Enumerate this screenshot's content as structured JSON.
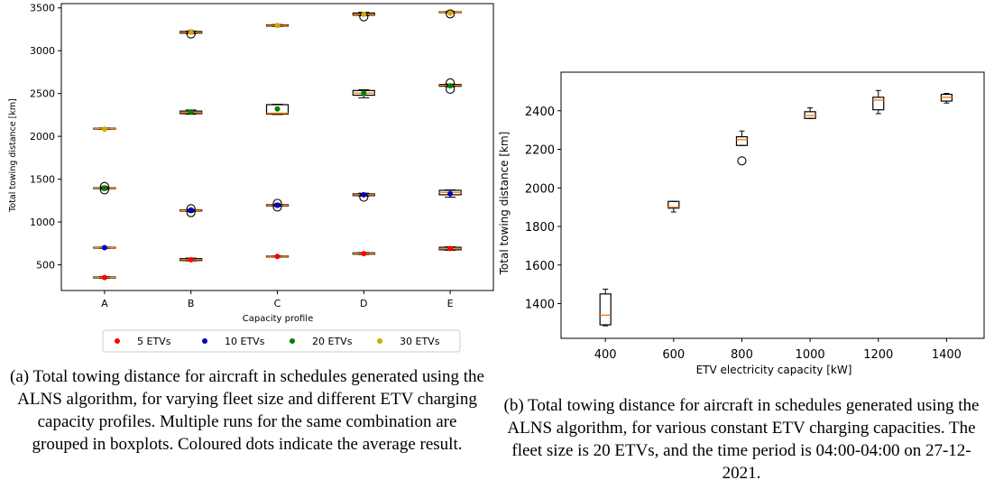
{
  "chart_data": [
    {
      "type": "box",
      "xlabel": "Capacity profile",
      "ylabel": "Total towing distance [km]",
      "categories": [
        "A",
        "B",
        "C",
        "D",
        "E"
      ],
      "ylim": [
        200,
        3550
      ],
      "yticks": [
        500,
        1000,
        1500,
        2000,
        2500,
        3000,
        3500
      ],
      "grid": false,
      "legend_position": "bottom",
      "series": [
        {
          "name": "5 ETVs",
          "color": "#ff0000",
          "means": [
            352,
            560,
            598,
            630,
            690
          ],
          "boxes": [
            {
              "q1": 346,
              "median": 352,
              "q3": 358,
              "whislo": 342,
              "whishi": 362,
              "fliers": []
            },
            {
              "q1": 550,
              "median": 560,
              "q3": 572,
              "whislo": 546,
              "whishi": 578,
              "fliers": []
            },
            {
              "q1": 592,
              "median": 598,
              "q3": 603,
              "whislo": 590,
              "whishi": 606,
              "fliers": []
            },
            {
              "q1": 624,
              "median": 632,
              "q3": 640,
              "whislo": 620,
              "whishi": 644,
              "fliers": []
            },
            {
              "q1": 675,
              "median": 690,
              "q3": 705,
              "whislo": 670,
              "whishi": 710,
              "fliers": []
            }
          ]
        },
        {
          "name": "10 ETVs",
          "color": "#0000cc",
          "means": [
            700,
            1140,
            1195,
            1318,
            1330
          ],
          "boxes": [
            {
              "q1": 695,
              "median": 700,
              "q3": 705,
              "whislo": 692,
              "whishi": 708,
              "fliers": []
            },
            {
              "q1": 1128,
              "median": 1135,
              "q3": 1142,
              "whislo": 1124,
              "whishi": 1146,
              "fliers": [
                1110,
                1155
              ]
            },
            {
              "q1": 1188,
              "median": 1195,
              "q3": 1202,
              "whislo": 1184,
              "whishi": 1206,
              "fliers": [
                1175,
                1218
              ]
            },
            {
              "q1": 1308,
              "median": 1318,
              "q3": 1328,
              "whislo": 1302,
              "whishi": 1336,
              "fliers": [
                1290
              ]
            },
            {
              "q1": 1318,
              "median": 1345,
              "q3": 1370,
              "whislo": 1290,
              "whishi": 1375,
              "fliers": []
            }
          ]
        },
        {
          "name": "20 ETVs",
          "color": "#008000",
          "means": [
            1395,
            2285,
            2320,
            2505,
            2590
          ],
          "boxes": [
            {
              "q1": 1390,
              "median": 1395,
              "q3": 1400,
              "whislo": 1386,
              "whishi": 1404,
              "fliers": [
                1375,
                1415
              ]
            },
            {
              "q1": 2265,
              "median": 2280,
              "q3": 2295,
              "whislo": 2258,
              "whishi": 2308,
              "fliers": []
            },
            {
              "q1": 2260,
              "median": 2270,
              "q3": 2370,
              "whislo": 2255,
              "whishi": 2375,
              "fliers": []
            },
            {
              "q1": 2480,
              "median": 2505,
              "q3": 2535,
              "whislo": 2450,
              "whishi": 2545,
              "fliers": []
            },
            {
              "q1": 2585,
              "median": 2595,
              "q3": 2605,
              "whislo": 2580,
              "whishi": 2610,
              "fliers": [
                2550,
                2625
              ]
            }
          ]
        },
        {
          "name": "30 ETVs",
          "color": "#d4a800",
          "means": [
            2085,
            3215,
            3295,
            3425,
            3440
          ],
          "boxes": [
            {
              "q1": 2085,
              "median": 2090,
              "q3": 2095,
              "whislo": 2082,
              "whishi": 2098,
              "fliers": []
            },
            {
              "q1": 3205,
              "median": 3215,
              "q3": 3225,
              "whislo": 3200,
              "whishi": 3230,
              "fliers": [
                3195
              ]
            },
            {
              "q1": 3288,
              "median": 3295,
              "q3": 3302,
              "whislo": 3284,
              "whishi": 3306,
              "fliers": []
            },
            {
              "q1": 3415,
              "median": 3425,
              "q3": 3440,
              "whislo": 3410,
              "whishi": 3448,
              "fliers": [
                3395
              ]
            },
            {
              "q1": 3445,
              "median": 3450,
              "q3": 3455,
              "whislo": 3442,
              "whishi": 3458,
              "fliers": [
                3430
              ]
            }
          ]
        }
      ]
    },
    {
      "type": "box",
      "xlabel": "ETV electricity capacity [kW]",
      "ylabel": "Total towing distance [km]",
      "x": [
        400,
        600,
        800,
        1000,
        1200,
        1400
      ],
      "xlim": [
        270,
        1510
      ],
      "ylim": [
        1220,
        2600
      ],
      "yticks": [
        1400,
        1600,
        1800,
        2000,
        2200,
        2400
      ],
      "grid": false,
      "boxes": [
        {
          "q1": 1290,
          "median": 1340,
          "q3": 1450,
          "whislo": 1285,
          "whishi": 1475,
          "fliers": []
        },
        {
          "q1": 1895,
          "median": 1900,
          "q3": 1930,
          "whislo": 1875,
          "whishi": 1930,
          "fliers": []
        },
        {
          "q1": 2220,
          "median": 2250,
          "q3": 2265,
          "whislo": 2220,
          "whishi": 2295,
          "fliers": [
            2140
          ]
        },
        {
          "q1": 2360,
          "median": 2375,
          "q3": 2395,
          "whislo": 2360,
          "whishi": 2415,
          "fliers": []
        },
        {
          "q1": 2405,
          "median": 2455,
          "q3": 2470,
          "whislo": 2385,
          "whishi": 2505,
          "fliers": []
        },
        {
          "q1": 2450,
          "median": 2470,
          "q3": 2485,
          "whislo": 2440,
          "whishi": 2490,
          "fliers": []
        }
      ]
    }
  ],
  "captions": {
    "a": "(a) Total towing distance for aircraft in schedules generated using the ALNS algorithm, for varying fleet size and different ETV charging capacity profiles. Multiple runs for the same combination are grouped in boxplots. Coloured dots indicate the average result.",
    "b": "(b) Total towing distance for aircraft in schedules generated using the ALNS algorithm, for various constant ETV charging capacities. The fleet size is 20 ETVs, and the time period is 04:00-04:00 on 27-12-2021."
  },
  "colors": {
    "median": "#ff7f0e",
    "box": "#000000"
  }
}
